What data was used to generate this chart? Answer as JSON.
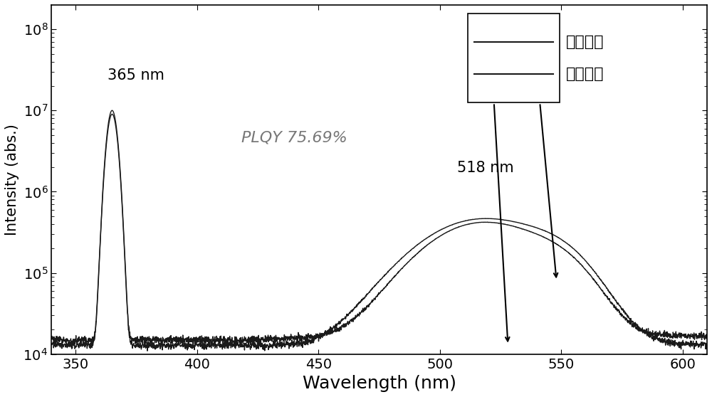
{
  "title": "",
  "xlabel": "Wavelength (nm)",
  "ylabel": "Intensity (abs.)",
  "xlim": [
    340,
    610
  ],
  "ylim_log": [
    4.0,
    8.3
  ],
  "plqy_text": "PLQY 75.69%",
  "annotation_365": "365 nm",
  "annotation_518": "518 nm",
  "legend_labels": [
    "激发光谱",
    "发射光谱"
  ],
  "background_color": "#ffffff",
  "line_color": "#1a1a1a",
  "fontsize_xlabel": 18,
  "fontsize_ylabel": 15,
  "fontsize_ticks": 14,
  "fontsize_annot": 15,
  "fontsize_plqy": 16,
  "fontsize_legend": 16
}
